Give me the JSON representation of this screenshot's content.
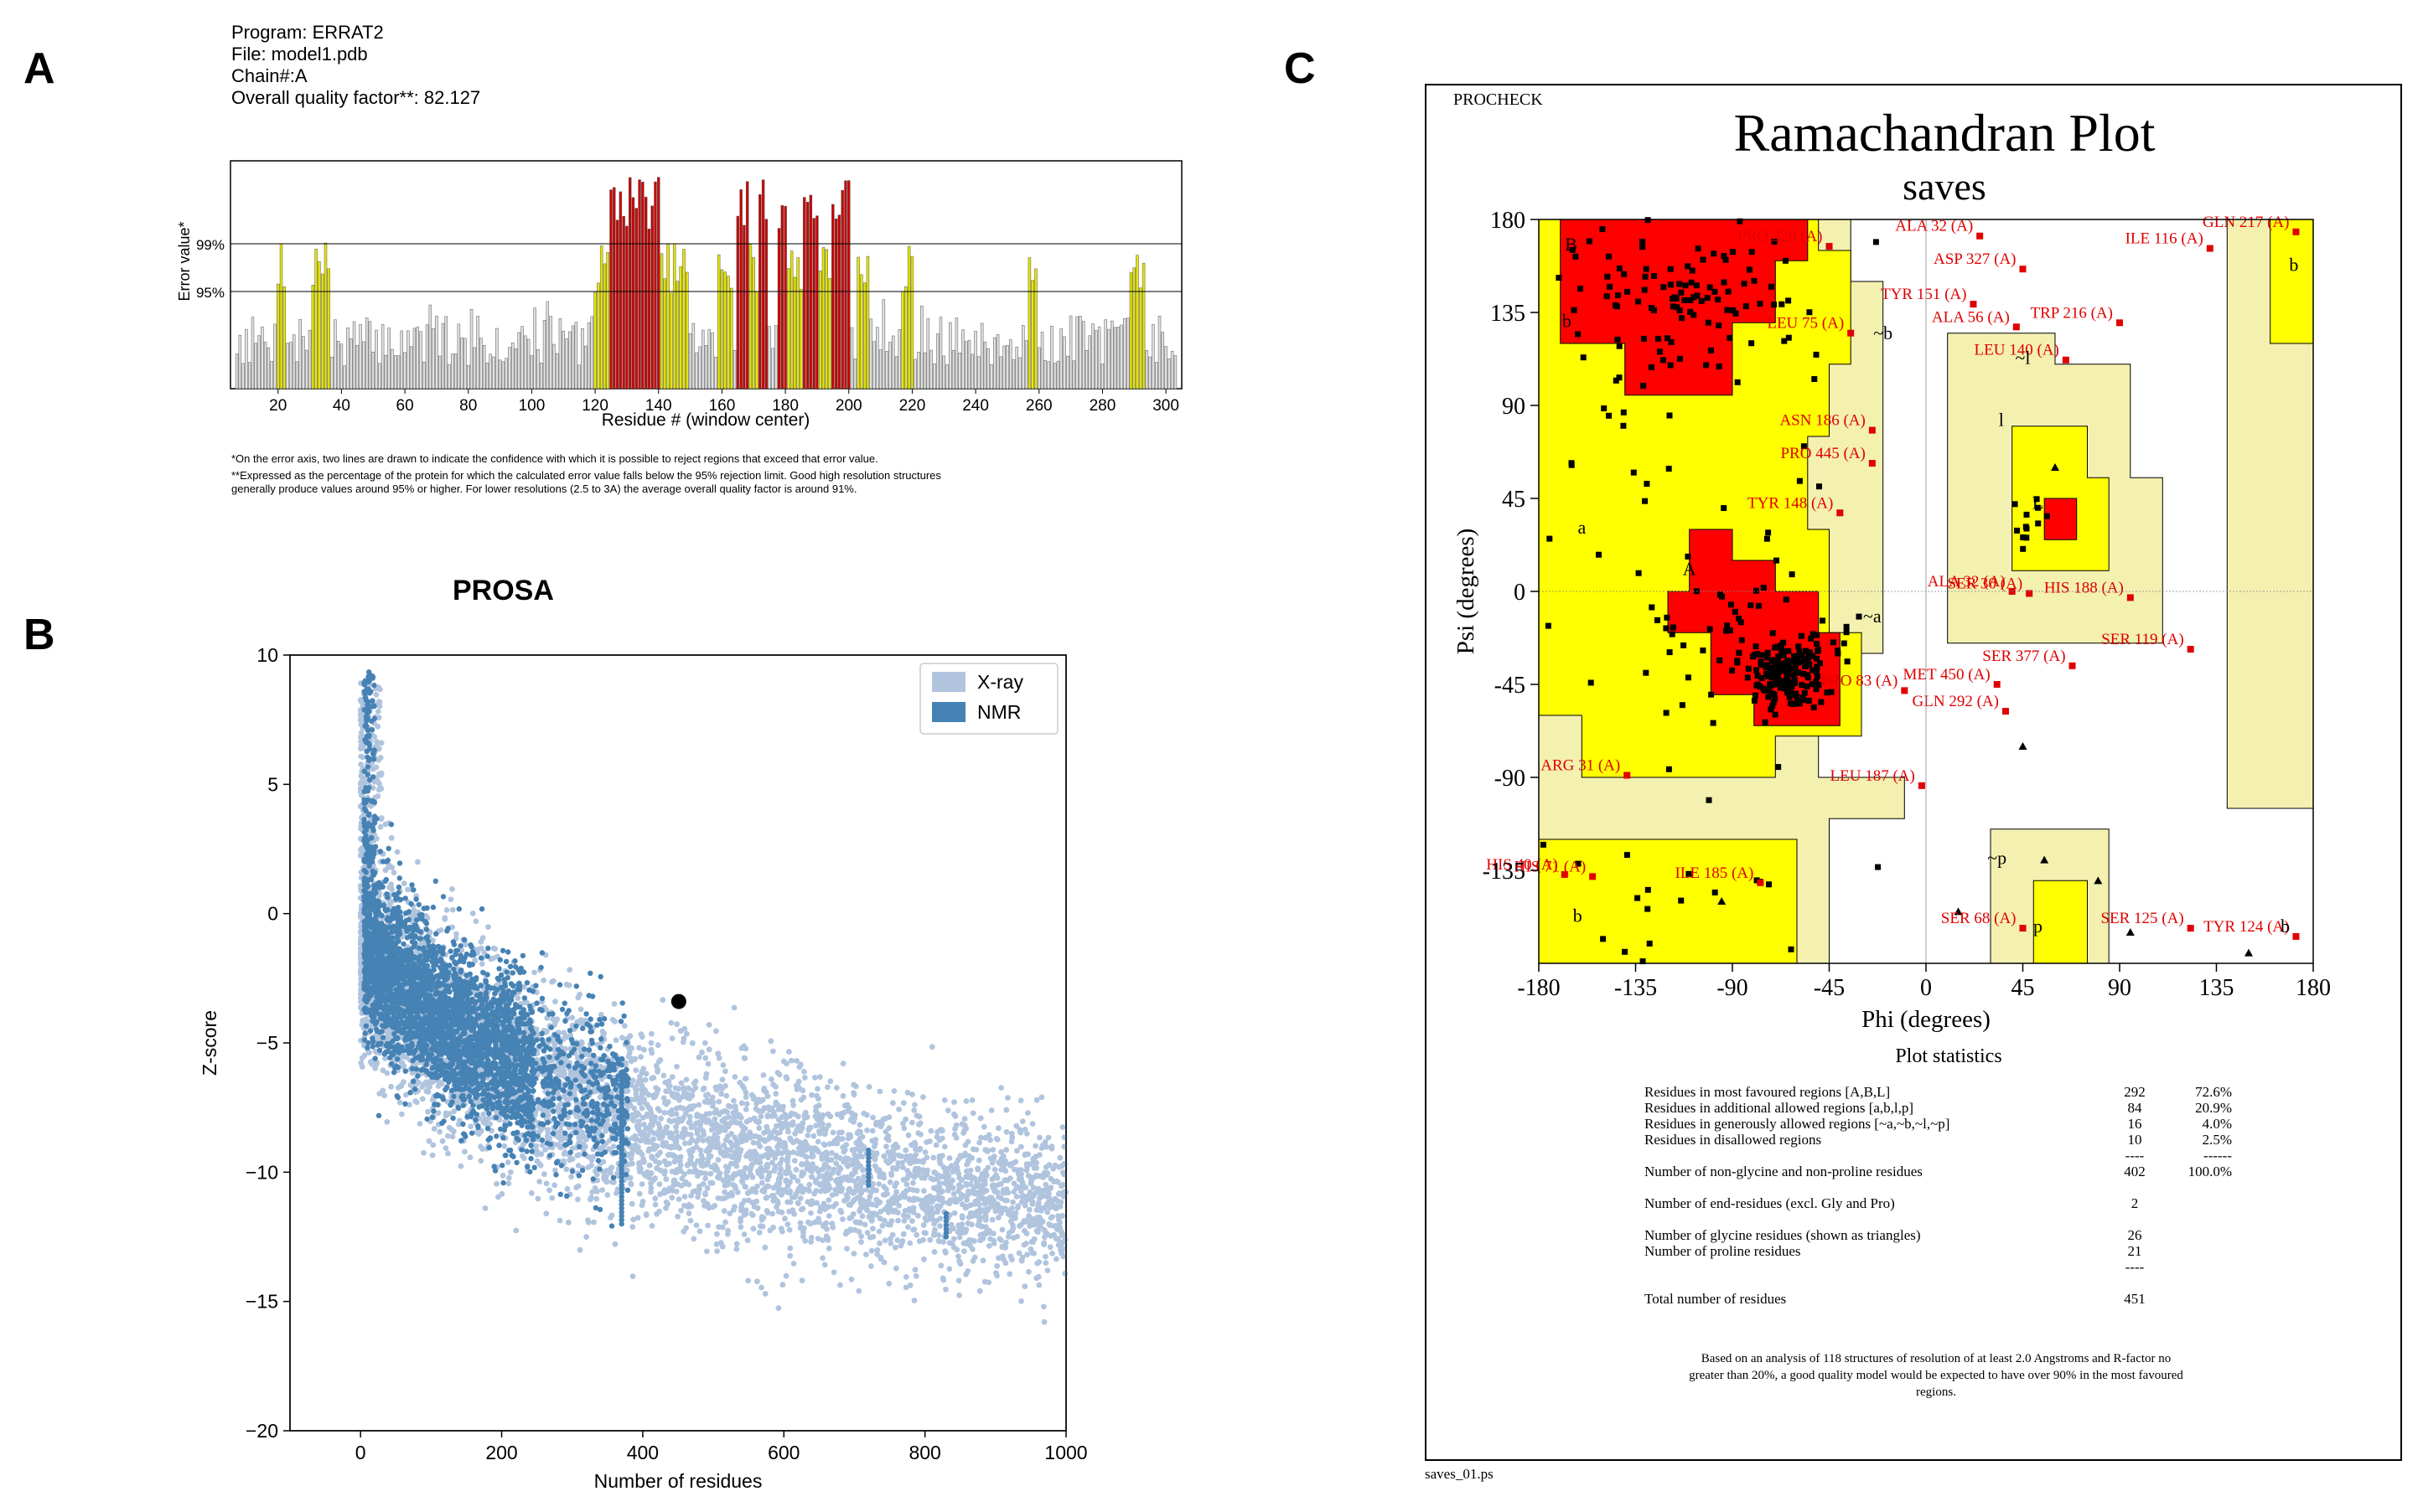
{
  "panels": {
    "a": "A",
    "b": "B",
    "c": "C"
  },
  "errat": {
    "program": "Program: ERRAT2",
    "file": "File: model1.pdb",
    "chain": "Chain#:A",
    "quality": "Overall quality factor**: 82.127",
    "ylabel": "Error value*",
    "xlabel": "Residue # (window center)",
    "lines": [
      "99%",
      "95%"
    ],
    "xticks": [
      "20",
      "40",
      "60",
      "80",
      "100",
      "120",
      "140",
      "160",
      "180",
      "200",
      "220",
      "240",
      "260",
      "280",
      "300"
    ],
    "footnote1": "*On the error axis, two lines are drawn to indicate the confidence with which it is possible to reject regions that exceed that error value.",
    "footnote2": "**Expressed as the percentage of the protein for which the calculated error value falls below the 95% rejection limit.  Good high resolution structures generally produce values around 95% or higher.  For lower resolutions (2.5 to 3A) the average overall quality factor is around 91%.",
    "colors": {
      "normal": "#e0e0e0",
      "warn": "#e6e600",
      "error": "#cc0000"
    }
  },
  "prosa": {
    "title": "PROSA",
    "xlabel": "Number of residues",
    "ylabel": "Z-score",
    "xticks": [
      "0",
      "200",
      "400",
      "600",
      "800",
      "1000"
    ],
    "yticks": [
      "10",
      "5",
      "0",
      "−5",
      "−10",
      "−15",
      "−20"
    ],
    "legend": [
      "X-ray",
      "NMR"
    ],
    "colors": {
      "xray": "#b0c4de",
      "nmr": "#4682b4",
      "point": "#000000"
    }
  },
  "rama": {
    "procheck": "PROCHECK",
    "title": "Ramachandran Plot",
    "subtitle": "saves",
    "xlabel": "Phi (degrees)",
    "ylabel": "Psi (degrees)",
    "xticks": [
      "-180",
      "-135",
      "-90",
      "-45",
      "0",
      "45",
      "90",
      "135",
      "180"
    ],
    "yticks": [
      "180",
      "135",
      "90",
      "45",
      "0",
      "-45",
      "-90",
      "-135"
    ],
    "region_labels": [
      "B",
      "b",
      "A",
      "a",
      "~b",
      "~l",
      "l",
      "L",
      "~a",
      "~p",
      "p",
      "b",
      "b",
      "b"
    ],
    "outliers": [
      {
        "label": "GLN 217 (A)",
        "phi": 172,
        "psi": 174
      },
      {
        "label": "ALA 32 (A)",
        "phi": 25,
        "psi": 172
      },
      {
        "label": "PRO 326 (A)",
        "phi": -45,
        "psi": 167
      },
      {
        "label": "ILE 116 (A)",
        "phi": 132,
        "psi": 166
      },
      {
        "label": "ASP 327 (A)",
        "phi": 45,
        "psi": 156
      },
      {
        "label": "TYR 151 (A)",
        "phi": 22,
        "psi": 139
      },
      {
        "label": "ALA 56 (A)",
        "phi": 42,
        "psi": 128
      },
      {
        "label": "TRP 216 (A)",
        "phi": 90,
        "psi": 130
      },
      {
        "label": "LEU 75 (A)",
        "phi": -35,
        "psi": 125
      },
      {
        "label": "LEU 140 (A)",
        "phi": 65,
        "psi": 112
      },
      {
        "label": "ASN 186 (A)",
        "phi": -25,
        "psi": 78
      },
      {
        "label": "PRO 445 (A)",
        "phi": -25,
        "psi": 62
      },
      {
        "label": "TYR 148 (A)",
        "phi": -40,
        "psi": 38
      },
      {
        "label": "ALA 32 (A)",
        "phi": 40,
        "psi": 0
      },
      {
        "label": "SER 30 (A)",
        "phi": 48,
        "psi": -1
      },
      {
        "label": "HIS 188 (A)",
        "phi": 95,
        "psi": -3
      },
      {
        "label": "SER 119 (A)",
        "phi": 123,
        "psi": -28
      },
      {
        "label": "SER 377 (A)",
        "phi": 68,
        "psi": -36
      },
      {
        "label": "MET 450 (A)",
        "phi": 33,
        "psi": -45
      },
      {
        "label": "PRO 83 (A)",
        "phi": -10,
        "psi": -48
      },
      {
        "label": "GLN 292 (A)",
        "phi": 37,
        "psi": -58
      },
      {
        "label": "ARG 31 (A)",
        "phi": -139,
        "psi": -89
      },
      {
        "label": "LEU 187 (A)",
        "phi": -2,
        "psi": -94
      },
      {
        "label": "HIS 40 (A)",
        "phi": -168,
        "psi": -137
      },
      {
        "label": "HIS 71 (A)",
        "phi": -155,
        "psi": -138
      },
      {
        "label": "ILE 185 (A)",
        "phi": -77,
        "psi": -141
      },
      {
        "label": "SER 68 (A)",
        "phi": 45,
        "psi": -163
      },
      {
        "label": "SER 125 (A)",
        "phi": 123,
        "psi": -163
      },
      {
        "label": "TYR 124 (A)",
        "phi": 172,
        "psi": -167
      }
    ],
    "colors": {
      "core": "#ff0000",
      "allowed": "#ffff00",
      "generous": "#f4f0b0",
      "disallowed": "#ffffff",
      "outlier": "#e00000"
    },
    "stats_title": "Plot statistics",
    "stats": [
      {
        "label": "Residues in most favoured regions  [A,B,L]",
        "count": "292",
        "pct": "72.6%"
      },
      {
        "label": "Residues in additional allowed regions  [a,b,l,p]",
        "count": "84",
        "pct": "20.9%"
      },
      {
        "label": "Residues in generously allowed regions  [~a,~b,~l,~p]",
        "count": "16",
        "pct": "4.0%"
      },
      {
        "label": "Residues in disallowed regions",
        "count": "10",
        "pct": "2.5%"
      },
      {
        "label": "",
        "count": "----",
        "pct": "------"
      },
      {
        "label": "Number of non-glycine and non-proline residues",
        "count": "402",
        "pct": "100.0%"
      },
      {
        "label": "",
        "count": "",
        "pct": ""
      },
      {
        "label": "Number of end-residues (excl. Gly and Pro)",
        "count": "2",
        "pct": ""
      },
      {
        "label": "",
        "count": "",
        "pct": ""
      },
      {
        "label": "Number of glycine residues (shown as triangles)",
        "count": "26",
        "pct": ""
      },
      {
        "label": "Number of proline residues",
        "count": "21",
        "pct": ""
      },
      {
        "label": "",
        "count": "----",
        "pct": ""
      },
      {
        "label": "",
        "count": "",
        "pct": ""
      },
      {
        "label": "Total number of residues",
        "count": "451",
        "pct": ""
      }
    ],
    "note": "Based on an analysis of 118 structures of resolution of at least 2.0 Angstroms and R-factor no greater than 20%, a good quality model would be expected to have over 90% in the most favoured regions.",
    "footer_file": "saves_01.ps"
  },
  "chart_data": [
    {
      "type": "bar",
      "title": "ERRAT2",
      "xlabel": "Residue # (window center)",
      "ylabel": "Error value*",
      "xlim": [
        5,
        305
      ],
      "ylim": [
        0,
        1
      ],
      "reference_lines": [
        {
          "name": "99%",
          "value": 0.67
        },
        {
          "name": "95%",
          "value": 0.4
        }
      ],
      "bar_classes": {
        "normal": "grey",
        "warn": "yellow (95-99%)",
        "error": "red (>99%)"
      },
      "warn_ranges": [
        [
          20,
          22
        ],
        [
          31,
          36
        ],
        [
          120,
          126
        ],
        [
          141,
          149
        ],
        [
          159,
          163
        ],
        [
          168,
          172
        ],
        [
          181,
          187
        ],
        [
          190,
          196
        ],
        [
          203,
          206
        ],
        [
          217,
          220
        ],
        [
          257,
          259
        ],
        [
          289,
          293
        ]
      ],
      "error_ranges": [
        [
          125,
          140
        ],
        [
          165,
          168
        ],
        [
          172,
          174
        ],
        [
          178,
          180
        ],
        [
          186,
          190
        ],
        [
          195,
          200
        ]
      ],
      "overall_quality_factor": 82.127
    },
    {
      "type": "scatter",
      "title": "PROSA",
      "xlabel": "Number of residues",
      "ylabel": "Z-score",
      "xlim": [
        -100,
        1000
      ],
      "ylim": [
        -20,
        10
      ],
      "series": [
        {
          "name": "X-ray",
          "description": "reference distribution"
        },
        {
          "name": "NMR",
          "description": "reference distribution"
        },
        {
          "name": "",
          "x": [
            451
          ],
          "y": [
            -3.4
          ]
        }
      ],
      "legend_position": "top-right"
    },
    {
      "type": "scatter",
      "title": "Ramachandran Plot",
      "subtitle": "saves",
      "xlabel": "Phi (degrees)",
      "ylabel": "Psi (degrees)",
      "xlim": [
        -180,
        180
      ],
      "ylim": [
        -180,
        180
      ]
    }
  ]
}
